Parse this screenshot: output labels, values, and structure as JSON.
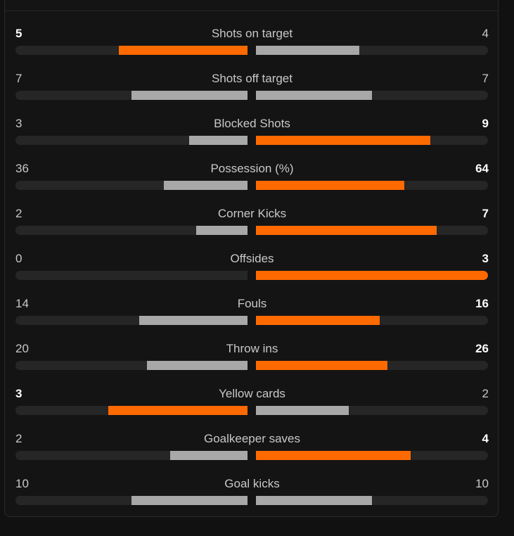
{
  "colors": {
    "background": "#111111",
    "track": "#262626",
    "leader_bar": "#ff6a00",
    "trailer_bar": "#a8a8a8",
    "label_text": "#c8c8c8",
    "leader_value_text": "#ffffff"
  },
  "stats": [
    {
      "label": "Shots on target",
      "home": "5",
      "away": "4",
      "home_share": 0.5556,
      "away_share": 0.4444,
      "leader": "home"
    },
    {
      "label": "Shots off target",
      "home": "7",
      "away": "7",
      "home_share": 0.5,
      "away_share": 0.5,
      "leader": "none"
    },
    {
      "label": "Blocked Shots",
      "home": "3",
      "away": "9",
      "home_share": 0.25,
      "away_share": 0.75,
      "leader": "away"
    },
    {
      "label": "Possession (%)",
      "home": "36",
      "away": "64",
      "home_share": 0.36,
      "away_share": 0.64,
      "leader": "away"
    },
    {
      "label": "Corner Kicks",
      "home": "2",
      "away": "7",
      "home_share": 0.2222,
      "away_share": 0.7778,
      "leader": "away"
    },
    {
      "label": "Offsides",
      "home": "0",
      "away": "3",
      "home_share": 0.0,
      "away_share": 1.0,
      "leader": "away"
    },
    {
      "label": "Fouls",
      "home": "14",
      "away": "16",
      "home_share": 0.4667,
      "away_share": 0.5333,
      "leader": "away"
    },
    {
      "label": "Throw ins",
      "home": "20",
      "away": "26",
      "home_share": 0.4348,
      "away_share": 0.5652,
      "leader": "away"
    },
    {
      "label": "Yellow cards",
      "home": "3",
      "away": "2",
      "home_share": 0.6,
      "away_share": 0.4,
      "leader": "home"
    },
    {
      "label": "Goalkeeper saves",
      "home": "2",
      "away": "4",
      "home_share": 0.3333,
      "away_share": 0.6667,
      "leader": "away"
    },
    {
      "label": "Goal kicks",
      "home": "10",
      "away": "10",
      "home_share": 0.5,
      "away_share": 0.5,
      "leader": "none"
    }
  ]
}
